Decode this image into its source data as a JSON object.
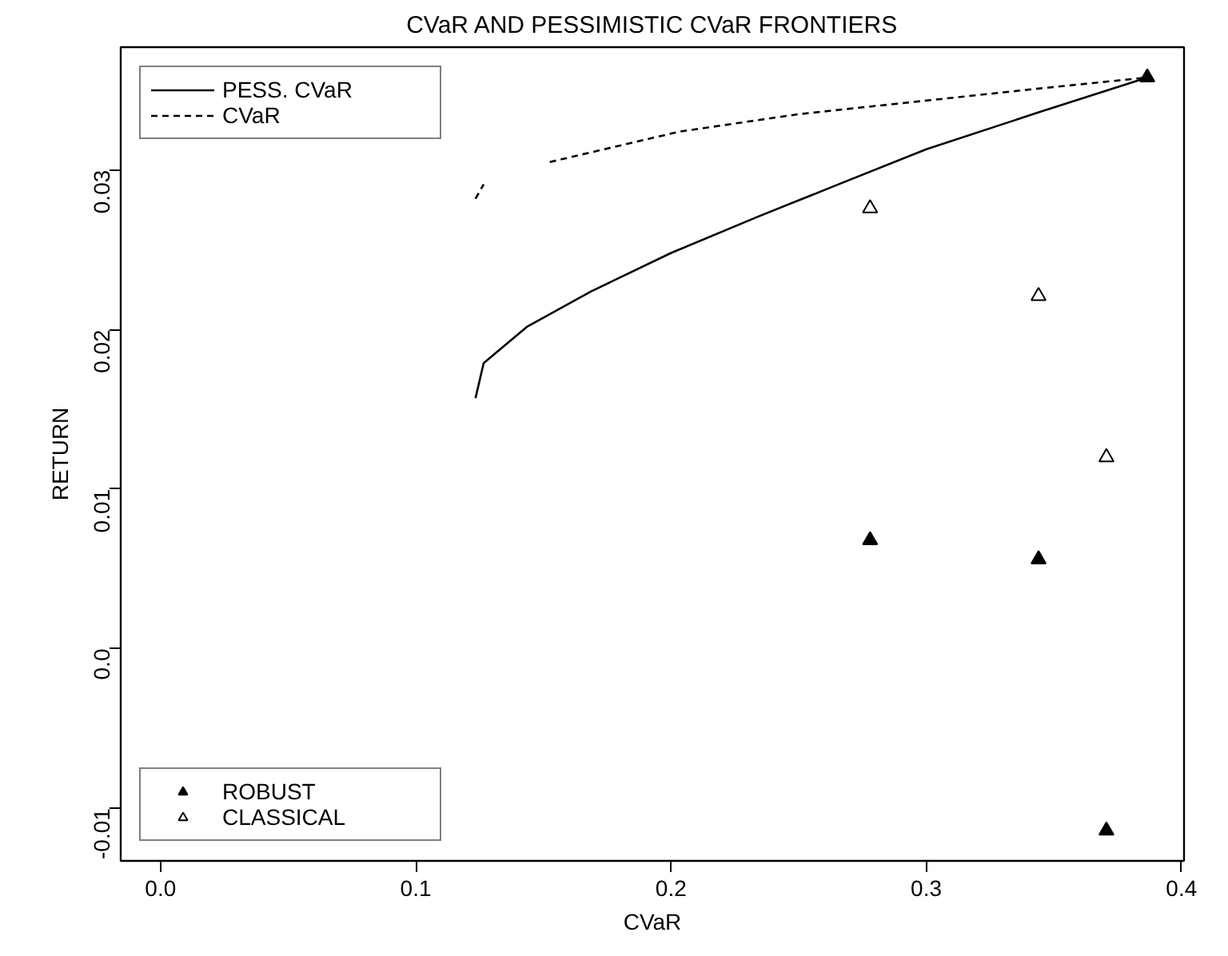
{
  "chart_data": {
    "type": "scatter",
    "title": "CVaR AND PESSIMISTIC CVaR FRONTIERS",
    "xlabel": "CVaR",
    "ylabel": "RETURN",
    "xlim": [
      -0.0156,
      0.401
    ],
    "ylim": [
      -0.0133,
      0.0377
    ],
    "xticks": [
      {
        "value": 0,
        "label": "0.0"
      },
      0.1,
      0.2,
      0.3,
      0.4
    ],
    "yticks": [
      -0.01,
      {
        "value": 0,
        "label": "0.0"
      },
      0.01,
      0.02,
      0.03
    ],
    "grid": false,
    "legend": "top left",
    "series": [
      {
        "name": "PESS. CVaR",
        "type": "line",
        "line_style": "solid",
        "marker": "none",
        "color": "#000000",
        "x": [
          0.1234,
          0.1266,
          0.1438,
          0.1688,
          0.2,
          0.2344,
          0.2656,
          0.3,
          0.3438,
          0.3866
        ],
        "values": [
          0.0157,
          0.0179,
          0.0202,
          0.0224,
          0.0248,
          0.0271,
          0.0291,
          0.0313,
          0.0336,
          0.0358
        ]
      },
      {
        "name": "CVaR",
        "type": "line",
        "line_style": "dashed",
        "marker": "none",
        "color": "#000000",
        "x": [
          0.1234,
          0.1266,
          0.14,
          0.1525,
          0.2031,
          0.25,
          0.2969,
          0.3438,
          0.3866
        ],
        "values": [
          0.0282,
          0.0291,
          null,
          0.0305,
          0.0324,
          0.0335,
          0.0343,
          0.0351,
          0.0358
        ]
      },
      {
        "name": "ROBUST",
        "marker": "triangle",
        "color": "#000000",
        "x": [
          0.3866,
          0.278,
          0.344,
          0.3706
        ],
        "values": [
          0.0358,
          0.0068,
          0.0056,
          -0.0114
        ]
      },
      {
        "name": "CLASSICAL",
        "marker": "triangle",
        "color": "#000000",
        "x": [
          0.278,
          0.344,
          0.3706
        ],
        "values": [
          0.0276,
          0.0221,
          0.012
        ]
      }
    ]
  }
}
